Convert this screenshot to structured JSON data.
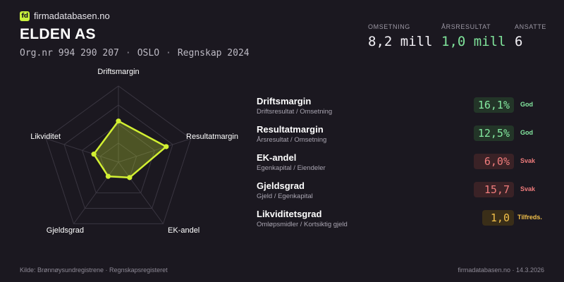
{
  "brand": {
    "logo_text": "fd",
    "name": "firmadatabasen.no"
  },
  "company": {
    "name": "ELDEN AS",
    "orgnr": "Org.nr 994 290 207",
    "city": "OSLO",
    "period": "Regnskap 2024",
    "separator": "·"
  },
  "kpis": [
    {
      "label": "OMSETNING",
      "value": "8,2 mill"
    },
    {
      "label": "ÅRSRESULTAT",
      "value": "1,0 mill"
    },
    {
      "label": "ANSATTE",
      "value": "6"
    }
  ],
  "radar": {
    "axes": [
      "Driftsmargin",
      "Resultatmargin",
      "EK-andel",
      "Gjeldsgrad",
      "Likviditet"
    ],
    "scores": [
      0.54,
      0.66,
      0.25,
      0.23,
      0.34
    ],
    "accent": "#d2f032"
  },
  "metrics": [
    {
      "name": "Driftsmargin",
      "sub": "Driftsresultat / Omsetning",
      "value": "16,1%",
      "status": "God",
      "level": "good"
    },
    {
      "name": "Resultatmargin",
      "sub": "Årsresultat / Omsetning",
      "value": "12,5%",
      "status": "God",
      "level": "good"
    },
    {
      "name": "EK-andel",
      "sub": "Egenkapital / Eiendeler",
      "value": "6,0%",
      "status": "Svak",
      "level": "weak"
    },
    {
      "name": "Gjeldsgrad",
      "sub": "Gjeld / Egenkapital",
      "value": "15,7",
      "status": "Svak",
      "level": "weak"
    },
    {
      "name": "Likviditetsgrad",
      "sub": "Omløpsmidler / Kortsiktig gjeld",
      "value": "1,0",
      "status": "Tilfreds.",
      "level": "ok"
    }
  ],
  "footer": {
    "source": "Kilde: Brønnøysundregistrene · Regnskapsregisteret",
    "site_date": "firmadatabasen.no · 14.3.2026"
  }
}
